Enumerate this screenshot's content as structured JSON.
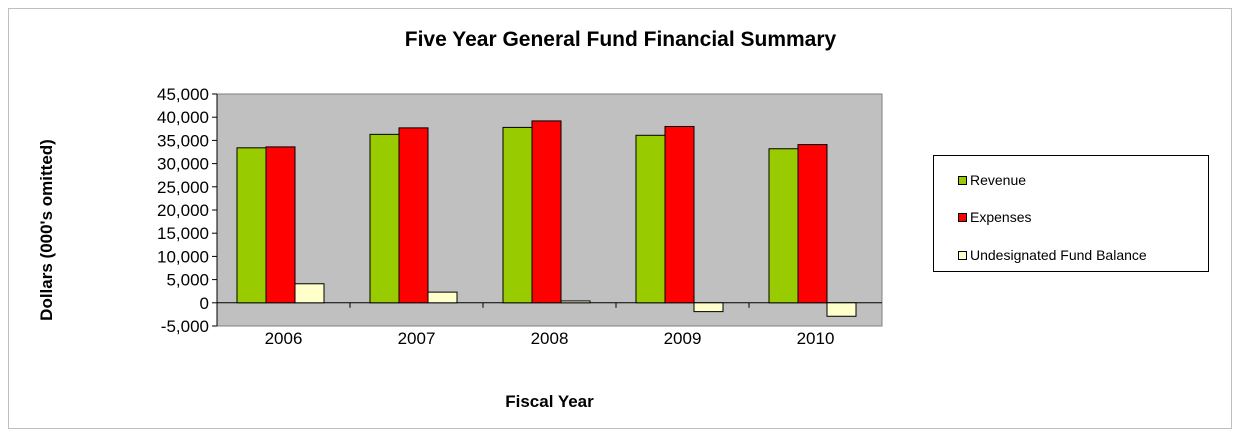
{
  "chart_data": {
    "type": "bar",
    "title": "Five Year General Fund Financial Summary",
    "xlabel": "Fiscal Year",
    "ylabel": "Dollars (000's omitted)",
    "categories": [
      "2006",
      "2007",
      "2008",
      "2009",
      "2010"
    ],
    "ylim": [
      -5000,
      45000
    ],
    "yticks": [
      -5000,
      0,
      5000,
      10000,
      15000,
      20000,
      25000,
      30000,
      35000,
      40000,
      45000
    ],
    "ytick_labels": [
      "-5,000",
      "0",
      "5,000",
      "10,000",
      "15,000",
      "20,000",
      "25,000",
      "30,000",
      "35,000",
      "40,000",
      "45,000"
    ],
    "grid": false,
    "legend_position": "right",
    "plot_background": "#c0c0c0",
    "series": [
      {
        "name": "Revenue",
        "color": "#99cc00",
        "values": [
          33400,
          36300,
          37800,
          36100,
          33200
        ]
      },
      {
        "name": "Expenses",
        "color": "#ff0000",
        "values": [
          33600,
          37700,
          39200,
          38000,
          34100
        ]
      },
      {
        "name": "Undesignated Fund Balance",
        "color": "#ffffcc",
        "values": [
          4100,
          2300,
          400,
          -1900,
          -2900
        ]
      }
    ]
  }
}
